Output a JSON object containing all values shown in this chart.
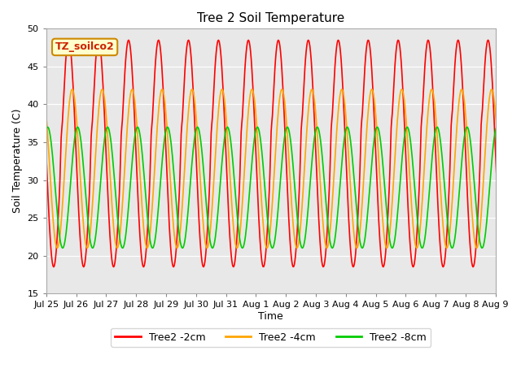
{
  "title": "Tree 2 Soil Temperature",
  "ylabel": "Soil Temperature (C)",
  "xlabel": "Time",
  "ylim": [
    15,
    50
  ],
  "legend_label": "TZ_soilco2",
  "series": [
    "Tree2 -2cm",
    "Tree2 -4cm",
    "Tree2 -8cm"
  ],
  "colors": [
    "#ff0000",
    "#ffa500",
    "#00cc00"
  ],
  "x_tick_labels": [
    "Jul 25",
    "Jul 26",
    "Jul 27",
    "Jul 28",
    "Jul 29",
    "Jul 30",
    "Jul 31",
    "Aug 1",
    "Aug 2",
    "Aug 3",
    "Aug 4",
    "Aug 5",
    "Aug 6",
    "Aug 7",
    "Aug 8",
    "Aug 9"
  ],
  "num_days": 16,
  "points_per_day": 48,
  "amp_2cm": 15.0,
  "amp_4cm": 10.5,
  "amp_8cm": 8.0,
  "mean_2cm": 33.5,
  "mean_4cm": 31.5,
  "mean_8cm": 29.0,
  "phase_shift_4cm": 0.12,
  "phase_shift_8cm": 0.3,
  "linewidth": 1.2
}
